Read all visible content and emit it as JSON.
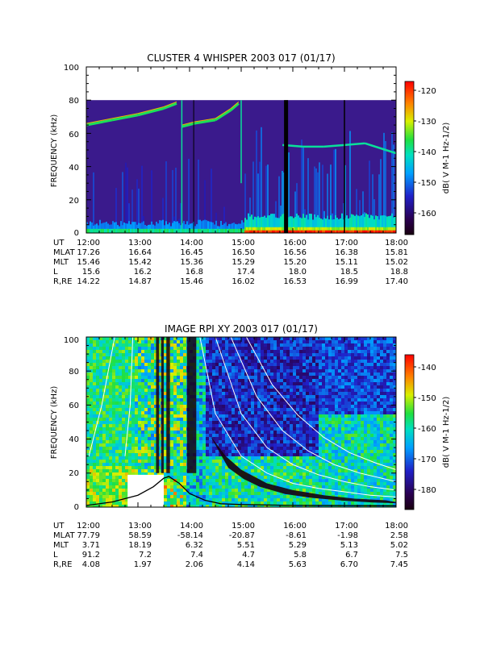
{
  "chart_data": [
    {
      "type": "heatmap",
      "title": "CLUSTER 4 WHISPER 2003 017 (01/17)",
      "ylabel": "FREQUENCY (kHz)",
      "xlabel": "",
      "ylim": [
        0,
        100
      ],
      "yticks": [
        "0",
        "20",
        "40",
        "60",
        "80",
        "100"
      ],
      "xlim": [
        "12:00",
        "18:00"
      ],
      "colorbar": {
        "label": "dB( V M-1 Hz-1/2)",
        "range": [
          -167,
          -117
        ],
        "ticks": [
          "-120",
          "-130",
          "-140",
          "-150",
          "-160"
        ]
      },
      "data_ceiling_khz": 80,
      "features": {
        "upper_emission_khz": [
          [
            12.0,
            65
          ],
          [
            12.5,
            68
          ],
          [
            13.0,
            71
          ],
          [
            13.5,
            75
          ],
          [
            13.75,
            78
          ],
          [
            13.85,
            64
          ],
          [
            14.1,
            66
          ],
          [
            14.5,
            68
          ],
          [
            14.8,
            74
          ],
          [
            14.95,
            78
          ]
        ],
        "late_band_khz": [
          [
            15.8,
            53
          ],
          [
            16.2,
            52
          ],
          [
            16.6,
            52
          ],
          [
            17.0,
            53
          ],
          [
            17.4,
            54
          ],
          [
            17.8,
            50
          ],
          [
            18.0,
            48
          ]
        ],
        "low_freq_intensity_onset": "15:05"
      },
      "ephemeris": {
        "rows": [
          {
            "label": "UT",
            "values": [
              "12:00",
              "13:00",
              "14:00",
              "15:00",
              "16:00",
              "17:00",
              "18:00"
            ]
          },
          {
            "label": "MLAT",
            "values": [
              "17.26",
              "16.64",
              "16.45",
              "16.50",
              "16.56",
              "16.38",
              "15.81"
            ]
          },
          {
            "label": "MLT",
            "values": [
              "15.46",
              "15.42",
              "15.36",
              "15.29",
              "15.20",
              "15.11",
              "15.02"
            ]
          },
          {
            "label": "L",
            "values": [
              "15.6",
              "16.2",
              "16.8",
              "17.4",
              "18.0",
              "18.5",
              "18.8"
            ]
          },
          {
            "label": "R,RE",
            "values": [
              "14.22",
              "14.87",
              "15.46",
              "16.02",
              "16.53",
              "16.99",
              "17.40"
            ]
          }
        ]
      }
    },
    {
      "type": "heatmap",
      "title": "IMAGE RPI XY 2003 017 (01/17)",
      "ylabel": "FREQUENCY (kHz)",
      "xlabel": "",
      "ylim": [
        0,
        100
      ],
      "yticks": [
        "0",
        "20",
        "40",
        "60",
        "80",
        "100"
      ],
      "xlim": [
        "12:00",
        "18:00"
      ],
      "colorbar": {
        "label": "dB( V M-1 Hz-1/2)",
        "range": [
          -186,
          -135
        ],
        "ticks": [
          "-140",
          "-150",
          "-160",
          "-170",
          "-180"
        ]
      },
      "features": {
        "dark_band_khz": [
          [
            14.4,
            42
          ],
          [
            14.7,
            30
          ],
          [
            15.0,
            22
          ],
          [
            15.5,
            14
          ],
          [
            16.0,
            10
          ],
          [
            16.6,
            7
          ],
          [
            17.2,
            5
          ],
          [
            17.8,
            4
          ]
        ],
        "white_curves_khz": [
          [
            [
              12.05,
              30
            ],
            [
              12.3,
              60
            ],
            [
              12.55,
              100
            ]
          ],
          [
            [
              12.75,
              30
            ],
            [
              12.85,
              60
            ],
            [
              12.9,
              100
            ]
          ],
          [
            [
              14.2,
              100
            ],
            [
              14.5,
              55
            ],
            [
              15.0,
              30
            ],
            [
              15.5,
              20
            ],
            [
              16.0,
              14
            ],
            [
              16.5,
              11
            ],
            [
              17.0,
              9
            ],
            [
              17.5,
              7
            ],
            [
              18.0,
              6
            ]
          ],
          [
            [
              14.5,
              100
            ],
            [
              15.0,
              55
            ],
            [
              15.5,
              35
            ],
            [
              16.0,
              25
            ],
            [
              16.5,
              19
            ],
            [
              17.0,
              15
            ],
            [
              17.5,
              12
            ],
            [
              18.0,
              10
            ]
          ],
          [
            [
              14.8,
              100
            ],
            [
              15.3,
              65
            ],
            [
              15.8,
              45
            ],
            [
              16.3,
              33
            ],
            [
              16.8,
              25
            ],
            [
              17.3,
              20
            ],
            [
              18.0,
              15
            ]
          ],
          [
            [
              15.1,
              100
            ],
            [
              15.6,
              72
            ],
            [
              16.1,
              54
            ],
            [
              16.6,
              41
            ],
            [
              17.1,
              32
            ],
            [
              17.6,
              26
            ],
            [
              18.0,
              22
            ]
          ]
        ],
        "black_curve_khz": [
          [
            12.0,
            1
          ],
          [
            12.5,
            3
          ],
          [
            13.0,
            7
          ],
          [
            13.3,
            12
          ],
          [
            13.5,
            17
          ],
          [
            13.6,
            18
          ],
          [
            13.8,
            14
          ],
          [
            14.0,
            8
          ],
          [
            14.3,
            4
          ],
          [
            14.6,
            2
          ],
          [
            15.0,
            1.5
          ],
          [
            16.0,
            1
          ],
          [
            18.0,
            0.8
          ]
        ]
      },
      "ephemeris": {
        "rows": [
          {
            "label": "UT",
            "values": [
              "12:00",
              "13:00",
              "14:00",
              "15:00",
              "16:00",
              "17:00",
              "18:00"
            ]
          },
          {
            "label": "MLAT",
            "values": [
              "77.79",
              "58.59",
              "-58.14",
              "-20.87",
              "-8.61",
              "-1.98",
              "2.58"
            ]
          },
          {
            "label": "MLT",
            "values": [
              "3.71",
              "18.19",
              "6.32",
              "5.51",
              "5.29",
              "5.13",
              "5.02"
            ]
          },
          {
            "label": "L",
            "values": [
              "91.2",
              "7.2",
              "7.4",
              "4.7",
              "5.8",
              "6.7",
              "7.5"
            ]
          },
          {
            "label": "R,RE",
            "values": [
              "4.08",
              "1.97",
              "2.06",
              "4.14",
              "5.63",
              "6.70",
              "7.45"
            ]
          }
        ]
      }
    }
  ]
}
